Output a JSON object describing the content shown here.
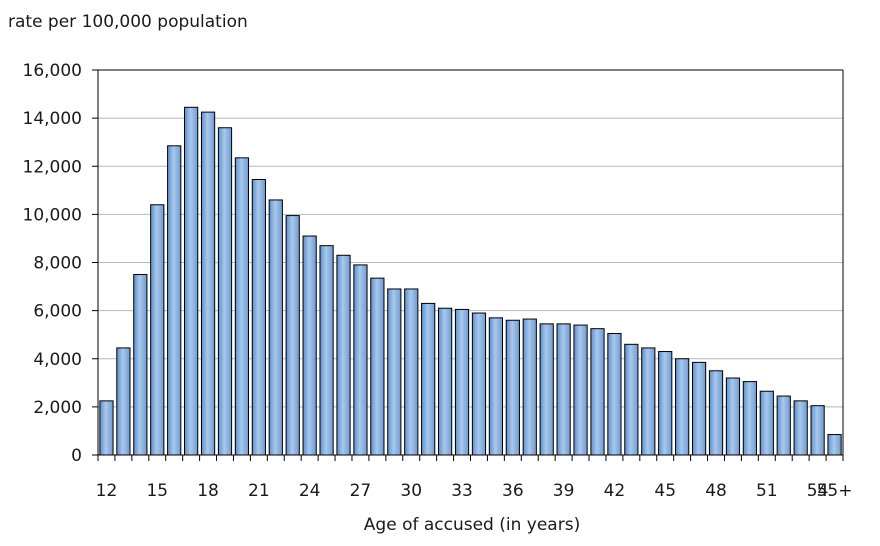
{
  "chart_data": {
    "type": "bar",
    "ylabel": "rate per 100,000 population",
    "xlabel": "Age of accused (in years)",
    "ylim": [
      0,
      16000
    ],
    "yticks": [
      "0",
      "2,000",
      "4,000",
      "6,000",
      "8,000",
      "10,000",
      "12,000",
      "14,000",
      "16,000"
    ],
    "grid": true,
    "bar_color": "#8db4e2",
    "categories": [
      "12",
      "13",
      "14",
      "15",
      "16",
      "17",
      "18",
      "19",
      "20",
      "21",
      "22",
      "23",
      "24",
      "25",
      "26",
      "27",
      "28",
      "29",
      "30",
      "31",
      "32",
      "33",
      "34",
      "35",
      "36",
      "37",
      "38",
      "39",
      "40",
      "41",
      "42",
      "43",
      "44",
      "45",
      "46",
      "47",
      "48",
      "49",
      "50",
      "51",
      "52",
      "53",
      "54",
      "55+"
    ],
    "values": [
      2250,
      4450,
      7500,
      10400,
      12850,
      14450,
      14250,
      13600,
      12350,
      11450,
      10600,
      9950,
      9100,
      8700,
      8300,
      7900,
      7350,
      6900,
      6900,
      6300,
      6100,
      6050,
      5900,
      5700,
      5600,
      5650,
      5450,
      5450,
      5400,
      5250,
      5050,
      4600,
      4450,
      4300,
      4000,
      3850,
      3500,
      3200,
      3050,
      2650,
      2450,
      2250,
      2050,
      850
    ],
    "xtick_labels": [
      "12",
      "",
      "",
      "15",
      "",
      "",
      "18",
      "",
      "",
      "21",
      "",
      "",
      "24",
      "",
      "",
      "27",
      "",
      "",
      "30",
      "",
      "",
      "33",
      "",
      "",
      "36",
      "",
      "",
      "39",
      "",
      "",
      "42",
      "",
      "",
      "45",
      "",
      "",
      "48",
      "",
      "",
      "51",
      "",
      "",
      "54",
      "55+"
    ]
  }
}
